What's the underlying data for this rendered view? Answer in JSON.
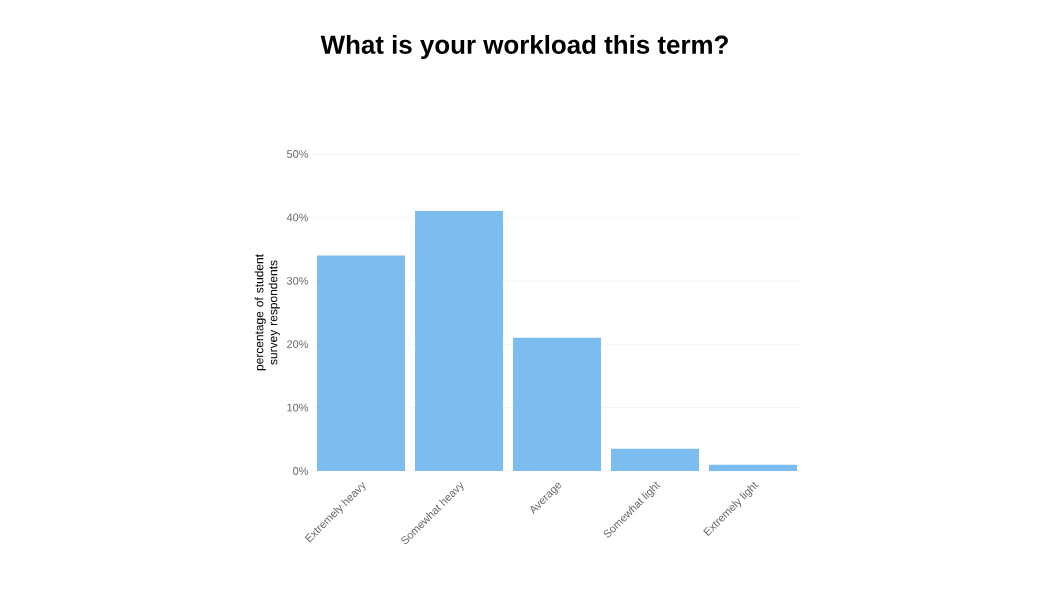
{
  "chart_data": {
    "type": "bar",
    "title": "What is your workload this term?",
    "ylabel": "percentage of student survey respondents",
    "categories": [
      "Extremely heavy",
      "Somewhat heavy",
      "Average",
      "Somewhat light",
      "Extremely light"
    ],
    "values": [
      34,
      41,
      21,
      3.5,
      1
    ],
    "color": "#7bbdee",
    "ylim": [
      0,
      50
    ],
    "yticks": [
      {
        "value": 0,
        "label": "0%"
      },
      {
        "value": 10,
        "label": "10%"
      },
      {
        "value": 20,
        "label": "20%"
      },
      {
        "value": 30,
        "label": "30%"
      },
      {
        "value": 40,
        "label": "40%"
      },
      {
        "value": 50,
        "label": "50%"
      }
    ],
    "grid": "y"
  }
}
